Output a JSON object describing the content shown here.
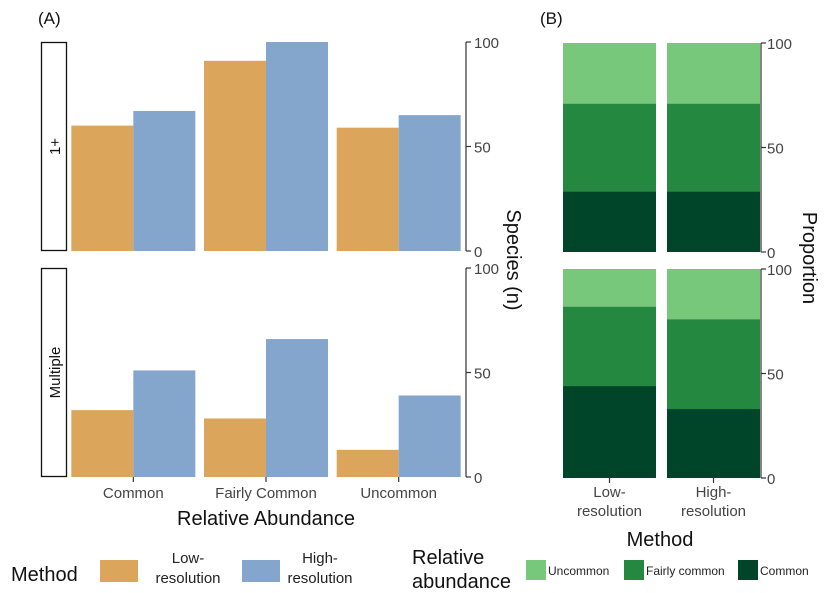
{
  "chart_data": [
    {
      "id": "A",
      "tag": "(A)",
      "type": "bar",
      "categories": [
        "Common",
        "Fairly Common",
        "Uncommon"
      ],
      "xlabel": "Relative Abundance",
      "ylabel": "Species (n)",
      "ylim": [
        0,
        100
      ],
      "yticks": [
        "0",
        "50",
        "100"
      ],
      "legend_title": "Method",
      "series": [
        {
          "name": "Low-resolution",
          "label_lines": [
            "Low-",
            "resolution"
          ],
          "color": "#DBA55C"
        },
        {
          "name": "High-resolution",
          "label_lines": [
            "High-",
            "resolution"
          ],
          "color": "#84A5CC"
        }
      ],
      "facets": [
        {
          "strip": "1+",
          "values": [
            [
              60,
              91,
              59
            ],
            [
              67,
              100,
              65
            ]
          ]
        },
        {
          "strip": "Multiple",
          "values": [
            [
              32,
              28,
              13
            ],
            [
              51,
              66,
              39
            ]
          ]
        }
      ]
    },
    {
      "id": "B",
      "tag": "(B)",
      "type": "bar",
      "stacked": true,
      "categories": [
        "Low-resolution",
        "High-resolution"
      ],
      "category_lines": [
        [
          "Low-",
          "resolution"
        ],
        [
          "High-",
          "resolution"
        ]
      ],
      "xlabel": "Method",
      "ylabel": "Proportion",
      "ylim": [
        0,
        100
      ],
      "yticks": [
        "0",
        "50",
        "100"
      ],
      "legend_title_lines": [
        "Relative",
        "abundance"
      ],
      "series": [
        {
          "name": "Common",
          "color": "#00452A"
        },
        {
          "name": "Fairly common",
          "color": "#248840"
        },
        {
          "name": "Uncommon",
          "color": "#77C87A"
        }
      ],
      "legend_order": [
        "Uncommon",
        "Fairly common",
        "Common"
      ],
      "facets": [
        {
          "values": [
            [
              29,
              29
            ],
            [
              42,
              42
            ],
            [
              29,
              29
            ]
          ]
        },
        {
          "values": [
            [
              44,
              33
            ],
            [
              38,
              43
            ],
            [
              18,
              24
            ]
          ]
        }
      ]
    }
  ]
}
